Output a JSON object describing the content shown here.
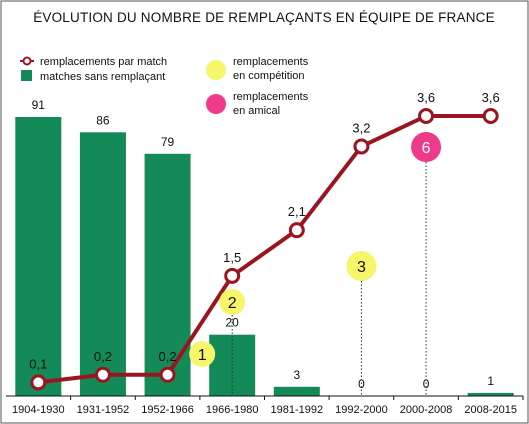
{
  "chart_data": {
    "type": "bar",
    "title": "ÉVOLUTION DU NOMBRE DE REMPLAÇANTS EN ÉQUIPE DE FRANCE",
    "categories": [
      "1904-1930",
      "1931-1952",
      "1952-1966",
      "1966-1980",
      "1981-1992",
      "1992-2000",
      "2000-2008",
      "2008-2015"
    ],
    "series": [
      {
        "name": "matches sans remplaçant",
        "kind": "bar",
        "color": "#138a57",
        "values": [
          91,
          86,
          79,
          20,
          3,
          0,
          0,
          1
        ],
        "labels": [
          "91",
          "86",
          "79",
          "20",
          "3",
          "0",
          "0",
          "1"
        ]
      },
      {
        "name": "remplacements par match",
        "kind": "line",
        "color": "#9b1520",
        "values": [
          0.1,
          0.2,
          0.2,
          1.5,
          2.1,
          3.2,
          3.6,
          3.6
        ],
        "labels": [
          "0,1",
          "0,2",
          "0,2",
          "1,5",
          "2,1",
          "3,2",
          "3,6",
          "3,6"
        ]
      }
    ],
    "legend": {
      "line": "remplacements par match",
      "bar": "matches sans remplaçant",
      "competition": [
        "remplacements",
        "en compétition"
      ],
      "amical": [
        "remplacements",
        "en amical"
      ]
    },
    "annotations": [
      {
        "text": "1",
        "type": "competition",
        "category": "1966-1980",
        "color": "#f7f56a",
        "text_color": "#111111"
      },
      {
        "text": "2",
        "type": "competition",
        "category": "1966-1980",
        "color": "#f7f56a",
        "text_color": "#111111"
      },
      {
        "text": "3",
        "type": "competition",
        "category": "1992-2000",
        "color": "#f7f56a",
        "text_color": "#111111"
      },
      {
        "text": "6",
        "type": "amical",
        "category": "2000-2008",
        "color": "#ef3a8a",
        "text_color": "#ffffff"
      }
    ],
    "bar_ylim": [
      0,
      100
    ],
    "line_ylim": [
      0,
      4
    ]
  }
}
